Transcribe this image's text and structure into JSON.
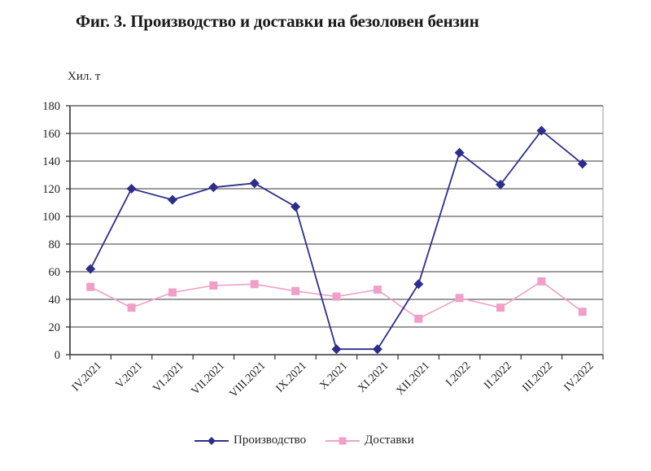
{
  "title": "Фиг. 3. Производство и доставки на безоловен бензин",
  "unit_label": "Хил. т",
  "colors": {
    "production": "#2e2e8a",
    "deliveries": "#f0a0c8",
    "grid": "#7a7a7a",
    "axis": "#333333"
  },
  "legend": [
    {
      "label": "Производство",
      "marker": "diamond",
      "color": "#2e2e8a"
    },
    {
      "label": "Доставки",
      "marker": "square",
      "color": "#f0a0c8"
    }
  ],
  "chart_data": {
    "type": "line",
    "title": "Фиг. 3. Производство и доставки на безоловен бензин",
    "xlabel": "",
    "ylabel": "Хил. т",
    "ylim": [
      0,
      180
    ],
    "yticks": [
      0,
      20,
      40,
      60,
      80,
      100,
      120,
      140,
      160,
      180
    ],
    "grid": true,
    "legend_position": "bottom",
    "categories": [
      "IV.2021",
      "V.2021",
      "VI.2021",
      "VII.2021",
      "VIII.2021",
      "IX.2021",
      "X.2021",
      "XI.2021",
      "XII.2021",
      "I.2022",
      "II.2022",
      "III.2022",
      "IV.2022"
    ],
    "series": [
      {
        "name": "Производство",
        "marker": "diamond",
        "color": "#2e2e8a",
        "values": [
          62,
          120,
          112,
          121,
          124,
          107,
          4,
          4,
          51,
          146,
          123,
          162,
          138
        ]
      },
      {
        "name": "Доставки",
        "marker": "square",
        "color": "#f0a0c8",
        "values": [
          49,
          34,
          45,
          50,
          51,
          46,
          42,
          47,
          26,
          41,
          34,
          53,
          31
        ]
      }
    ]
  }
}
